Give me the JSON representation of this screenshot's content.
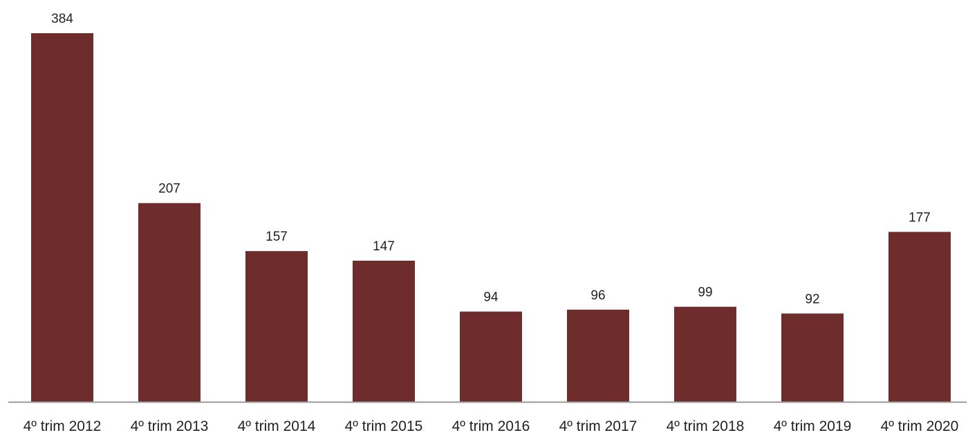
{
  "chart_data": {
    "type": "bar",
    "title": "",
    "xlabel": "",
    "ylabel": "",
    "categories": [
      "4º trim 2012",
      "4º trim 2013",
      "4º trim 2014",
      "4º trim 2015",
      "4º trim 2016",
      "4º trim 2017",
      "4º trim 2018",
      "4º trim 2019",
      "4º trim 2020"
    ],
    "values": [
      384,
      207,
      157,
      147,
      94,
      96,
      99,
      92,
      177
    ],
    "ylim": [
      0,
      384
    ],
    "grid": false,
    "legend": "none",
    "data_labels": true,
    "colors": {
      "bar": "#6e2c2c",
      "axis": "#9a9a9a"
    }
  }
}
